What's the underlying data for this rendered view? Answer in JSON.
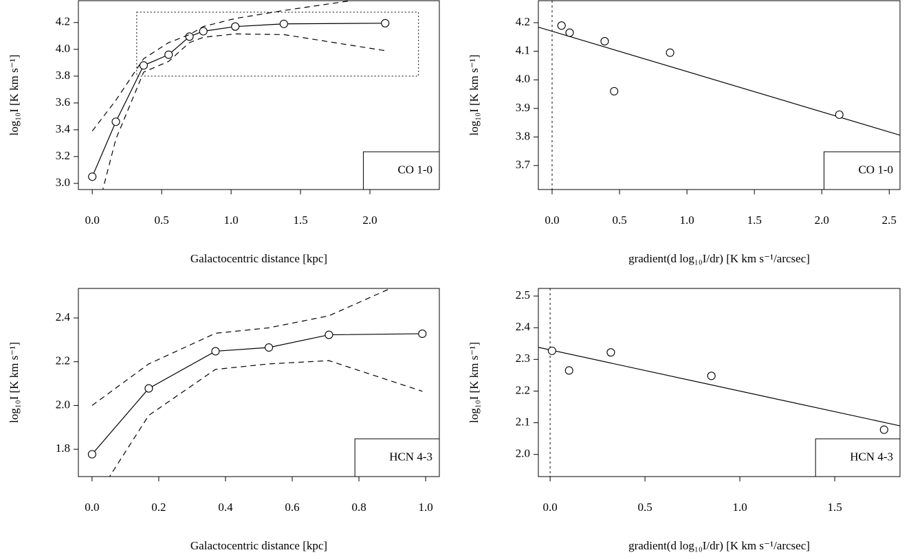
{
  "chart_data": [
    {
      "type": "line",
      "xlabel": "Galactocentric distance [kpc]",
      "ylabel": "log₁₀I [K km s⁻¹]",
      "xlim": [
        -0.1,
        2.5
      ],
      "ylim": [
        2.954,
        4.363
      ],
      "xticks": [
        {
          "value": 0,
          "label": "0.0"
        },
        0.5,
        {
          "value": 1,
          "label": "1.0"
        },
        1.5,
        {
          "value": 2,
          "label": "2.0"
        }
      ],
      "yticks": [
        {
          "value": 3,
          "label": "3.0"
        },
        3.2,
        3.4,
        3.6,
        3.8,
        {
          "value": 4,
          "label": "4.0"
        },
        4.2
      ],
      "series": [
        {
          "style": "solid",
          "markers": true,
          "color": "#000000",
          "x": [
            0,
            0.17,
            0.37,
            0.55,
            0.7,
            0.8,
            1.03,
            1.38,
            2.11
          ],
          "values": [
            3.05,
            3.46,
            3.88,
            3.96,
            4.095,
            4.135,
            4.17,
            4.19,
            4.195
          ]
        },
        {
          "style": "dashed",
          "markers": false,
          "color": "#000000",
          "x": [
            0,
            0.17,
            0.37,
            0.55,
            0.7,
            0.8,
            1.03,
            1.38,
            2.11
          ],
          "values": [
            3.39,
            3.62,
            3.93,
            4.05,
            4.11,
            4.17,
            4.23,
            4.29,
            4.4
          ]
        },
        {
          "style": "dashed",
          "markers": false,
          "color": "#000000",
          "x": [
            0,
            0.17,
            0.37,
            0.55,
            0.7,
            0.8,
            1.03,
            1.38,
            2.11
          ],
          "values": [
            2.65,
            3.33,
            3.83,
            3.91,
            4.05,
            4.09,
            4.115,
            4.11,
            3.99
          ]
        }
      ],
      "zoom_box": {
        "xlim": [
          0.32,
          2.35
        ],
        "ylim": [
          3.8,
          4.277
        ]
      },
      "legend_label": "CO 1-0",
      "legend_position": "bottomright"
    },
    {
      "type": "scatter",
      "xlabel": "gradient(d log₁₀I/dr) [K km s⁻¹/arcsec]",
      "ylabel": "log₁₀I [K km s⁻¹]",
      "xlim": [
        -0.102,
        2.58
      ],
      "ylim": [
        3.616,
        4.277
      ],
      "xticks": [
        {
          "value": 0,
          "label": "0.0"
        },
        0.5,
        {
          "value": 1,
          "label": "1.0"
        },
        1.5,
        {
          "value": 2,
          "label": "2.0"
        },
        2.5
      ],
      "yticks": [
        3.7,
        3.8,
        3.9,
        {
          "value": 4,
          "label": "4.0"
        },
        4.1,
        4.2
      ],
      "x": [
        0.07,
        0.13,
        0.39,
        0.46,
        0.875,
        2.13
      ],
      "values": [
        4.19,
        4.165,
        4.135,
        3.96,
        4.095,
        3.878
      ],
      "color": "#000000",
      "fit": {
        "intercept": 4.17,
        "slope": -0.141
      },
      "vline": 0,
      "legend_label": "CO 1-0",
      "legend_position": "bottomright"
    },
    {
      "type": "line",
      "xlabel": "Galactocentric distance [kpc]",
      "ylabel": "log₁₀I [K km s⁻¹]",
      "xlim": [
        -0.041,
        1.041
      ],
      "ylim": [
        1.675,
        2.535
      ],
      "xticks": [
        {
          "value": 0,
          "label": "0.0"
        },
        0.2,
        0.4,
        0.6,
        0.8,
        {
          "value": 1,
          "label": "1.0"
        }
      ],
      "yticks": [
        1.8,
        {
          "value": 2,
          "label": "2.0"
        },
        2.2,
        2.4
      ],
      "series": [
        {
          "style": "solid",
          "markers": true,
          "color": "#000000",
          "x": [
            0,
            0.17,
            0.37,
            0.53,
            0.71,
            0.99
          ],
          "values": [
            1.777,
            2.078,
            2.248,
            2.265,
            2.323,
            2.328
          ]
        },
        {
          "style": "dashed",
          "markers": false,
          "color": "#000000",
          "x": [
            0,
            0.17,
            0.37,
            0.53,
            0.71,
            0.99
          ],
          "values": [
            2.0,
            2.19,
            2.33,
            2.355,
            2.41,
            2.6
          ]
        },
        {
          "style": "dashed",
          "markers": false,
          "color": "#000000",
          "x": [
            0,
            0.17,
            0.37,
            0.53,
            0.71,
            0.99
          ],
          "values": [
            1.55,
            1.955,
            2.165,
            2.19,
            2.205,
            2.065
          ]
        }
      ],
      "legend_label": "HCN 4-3",
      "legend_position": "bottomright"
    },
    {
      "type": "scatter",
      "xlabel": "gradient(d log₁₀I/dr) [K km s⁻¹/arcsec]",
      "ylabel": "log₁₀I [K km s⁻¹]",
      "xlim": [
        -0.062,
        1.844
      ],
      "ylim": [
        1.93,
        2.524
      ],
      "xticks": [
        {
          "value": 0,
          "label": "0.0"
        },
        0.5,
        {
          "value": 1,
          "label": "1.0"
        },
        1.5
      ],
      "yticks": [
        {
          "value": 2,
          "label": "2.0"
        },
        2.1,
        2.2,
        2.3,
        2.4,
        2.5
      ],
      "x": [
        0.01,
        0.1,
        0.32,
        0.85,
        1.76
      ],
      "values": [
        2.327,
        2.265,
        2.322,
        2.248,
        2.078
      ],
      "color": "#000000",
      "fit": {
        "intercept": 2.33,
        "slope": -0.13
      },
      "vline": 0,
      "legend_label": "HCN 4-3",
      "legend_position": "bottomright"
    }
  ]
}
